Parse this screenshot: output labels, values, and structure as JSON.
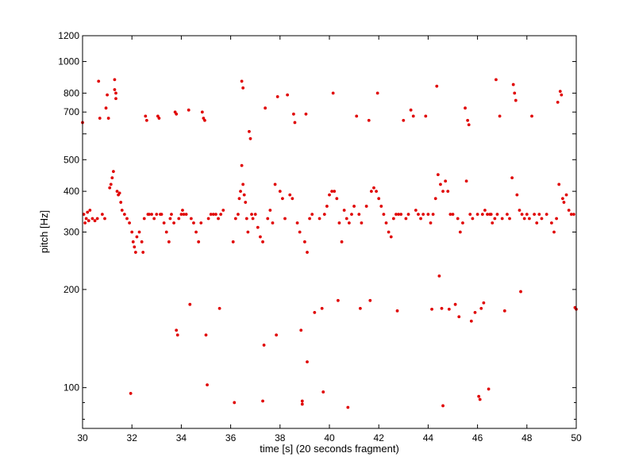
{
  "chart_data": {
    "type": "scatter",
    "xlabel": "time [s] (20 seconds fragment)",
    "ylabel": "pitch [Hz]",
    "xlim": [
      30,
      50
    ],
    "ylim": [
      75,
      1200
    ],
    "yscale": "log",
    "grid": false,
    "xticks": [
      30,
      32,
      34,
      36,
      38,
      40,
      42,
      44,
      46,
      48,
      50
    ],
    "yticks": [
      100,
      200,
      300,
      400,
      500,
      600,
      700,
      800,
      1000,
      1200
    ],
    "ytick_labels": [
      "100",
      "200",
      "300",
      "400",
      "500",
      "",
      "700",
      "800",
      "1000",
      "1200"
    ],
    "marker_color": "#e00000",
    "series": [
      {
        "points": [
          [
            30.0,
            650
          ],
          [
            30.05,
            340
          ],
          [
            30.1,
            320
          ],
          [
            30.15,
            330
          ],
          [
            30.2,
            345
          ],
          [
            30.25,
            325
          ],
          [
            30.3,
            350
          ],
          [
            30.4,
            330
          ],
          [
            30.5,
            325
          ],
          [
            30.6,
            330
          ],
          [
            30.65,
            870
          ],
          [
            30.7,
            670
          ],
          [
            30.8,
            340
          ],
          [
            30.9,
            330
          ],
          [
            30.95,
            720
          ],
          [
            31.0,
            790
          ],
          [
            31.05,
            670
          ],
          [
            31.1,
            410
          ],
          [
            31.15,
            420
          ],
          [
            31.2,
            440
          ],
          [
            31.25,
            460
          ],
          [
            31.3,
            880
          ],
          [
            31.3,
            820
          ],
          [
            31.35,
            800
          ],
          [
            31.35,
            770
          ],
          [
            31.4,
            400
          ],
          [
            31.45,
            390
          ],
          [
            31.5,
            395
          ],
          [
            31.55,
            370
          ],
          [
            31.6,
            350
          ],
          [
            31.7,
            340
          ],
          [
            31.8,
            330
          ],
          [
            31.9,
            320
          ],
          [
            31.95,
            96
          ],
          [
            32.0,
            300
          ],
          [
            32.05,
            280
          ],
          [
            32.1,
            270
          ],
          [
            32.15,
            260
          ],
          [
            32.2,
            290
          ],
          [
            32.3,
            300
          ],
          [
            32.4,
            280
          ],
          [
            32.45,
            260
          ],
          [
            32.5,
            330
          ],
          [
            32.55,
            680
          ],
          [
            32.6,
            660
          ],
          [
            32.65,
            340
          ],
          [
            32.7,
            340
          ],
          [
            32.8,
            340
          ],
          [
            32.9,
            330
          ],
          [
            33.0,
            340
          ],
          [
            33.05,
            680
          ],
          [
            33.1,
            670
          ],
          [
            33.15,
            340
          ],
          [
            33.2,
            340
          ],
          [
            33.3,
            320
          ],
          [
            33.4,
            300
          ],
          [
            33.5,
            280
          ],
          [
            33.55,
            330
          ],
          [
            33.6,
            340
          ],
          [
            33.7,
            320
          ],
          [
            33.75,
            700
          ],
          [
            33.8,
            690
          ],
          [
            33.8,
            150
          ],
          [
            33.85,
            145
          ],
          [
            33.9,
            330
          ],
          [
            34.0,
            340
          ],
          [
            34.05,
            350
          ],
          [
            34.1,
            340
          ],
          [
            34.2,
            340
          ],
          [
            34.3,
            710
          ],
          [
            34.35,
            180
          ],
          [
            34.4,
            330
          ],
          [
            34.5,
            320
          ],
          [
            34.6,
            300
          ],
          [
            34.7,
            280
          ],
          [
            34.8,
            320
          ],
          [
            34.85,
            700
          ],
          [
            34.9,
            670
          ],
          [
            34.95,
            660
          ],
          [
            35.0,
            145
          ],
          [
            35.05,
            102
          ],
          [
            35.1,
            330
          ],
          [
            35.2,
            340
          ],
          [
            35.3,
            340
          ],
          [
            35.4,
            340
          ],
          [
            35.5,
            330
          ],
          [
            35.55,
            175
          ],
          [
            35.6,
            340
          ],
          [
            35.7,
            350
          ],
          [
            36.1,
            280
          ],
          [
            36.15,
            90
          ],
          [
            36.2,
            330
          ],
          [
            36.3,
            340
          ],
          [
            36.35,
            380
          ],
          [
            36.4,
            400
          ],
          [
            36.45,
            480
          ],
          [
            36.45,
            870
          ],
          [
            36.5,
            830
          ],
          [
            36.5,
            420
          ],
          [
            36.55,
            390
          ],
          [
            36.6,
            370
          ],
          [
            36.65,
            330
          ],
          [
            36.7,
            300
          ],
          [
            36.75,
            610
          ],
          [
            36.8,
            580
          ],
          [
            36.85,
            340
          ],
          [
            36.9,
            330
          ],
          [
            37.0,
            340
          ],
          [
            37.1,
            310
          ],
          [
            37.2,
            290
          ],
          [
            37.3,
            280
          ],
          [
            37.35,
            135
          ],
          [
            37.3,
            91
          ],
          [
            37.4,
            720
          ],
          [
            37.5,
            330
          ],
          [
            37.6,
            350
          ],
          [
            37.7,
            320
          ],
          [
            37.8,
            420
          ],
          [
            37.85,
            145
          ],
          [
            37.9,
            780
          ],
          [
            38.0,
            400
          ],
          [
            38.1,
            380
          ],
          [
            38.2,
            330
          ],
          [
            38.3,
            790
          ],
          [
            38.4,
            390
          ],
          [
            38.5,
            380
          ],
          [
            38.55,
            690
          ],
          [
            38.6,
            650
          ],
          [
            38.7,
            320
          ],
          [
            38.8,
            300
          ],
          [
            38.85,
            150
          ],
          [
            38.9,
            91
          ],
          [
            38.9,
            89
          ],
          [
            39.0,
            280
          ],
          [
            39.05,
            690
          ],
          [
            39.1,
            260
          ],
          [
            39.1,
            120
          ],
          [
            39.2,
            330
          ],
          [
            39.3,
            340
          ],
          [
            39.4,
            170
          ],
          [
            39.6,
            330
          ],
          [
            39.7,
            175
          ],
          [
            39.75,
            97
          ],
          [
            39.8,
            340
          ],
          [
            39.9,
            360
          ],
          [
            40.0,
            390
          ],
          [
            40.1,
            400
          ],
          [
            40.15,
            800
          ],
          [
            40.2,
            400
          ],
          [
            40.3,
            380
          ],
          [
            40.35,
            185
          ],
          [
            40.4,
            320
          ],
          [
            40.5,
            280
          ],
          [
            40.6,
            350
          ],
          [
            40.7,
            330
          ],
          [
            40.75,
            87
          ],
          [
            40.8,
            320
          ],
          [
            40.9,
            340
          ],
          [
            41.0,
            360
          ],
          [
            41.1,
            680
          ],
          [
            41.2,
            340
          ],
          [
            41.25,
            175
          ],
          [
            41.3,
            320
          ],
          [
            41.5,
            360
          ],
          [
            41.6,
            660
          ],
          [
            41.65,
            185
          ],
          [
            41.7,
            400
          ],
          [
            41.8,
            410
          ],
          [
            41.9,
            400
          ],
          [
            41.95,
            800
          ],
          [
            42.0,
            380
          ],
          [
            42.1,
            360
          ],
          [
            42.2,
            340
          ],
          [
            42.3,
            320
          ],
          [
            42.4,
            300
          ],
          [
            42.5,
            290
          ],
          [
            42.6,
            330
          ],
          [
            42.7,
            340
          ],
          [
            42.75,
            172
          ],
          [
            42.8,
            340
          ],
          [
            42.9,
            340
          ],
          [
            43.0,
            660
          ],
          [
            43.1,
            330
          ],
          [
            43.2,
            340
          ],
          [
            43.3,
            710
          ],
          [
            43.4,
            680
          ],
          [
            43.5,
            350
          ],
          [
            43.6,
            340
          ],
          [
            43.7,
            330
          ],
          [
            43.8,
            340
          ],
          [
            43.9,
            680
          ],
          [
            44.0,
            340
          ],
          [
            44.1,
            320
          ],
          [
            44.15,
            174
          ],
          [
            44.2,
            340
          ],
          [
            44.3,
            380
          ],
          [
            44.35,
            840
          ],
          [
            44.4,
            450
          ],
          [
            44.45,
            220
          ],
          [
            44.5,
            420
          ],
          [
            44.55,
            175
          ],
          [
            44.6,
            88
          ],
          [
            44.6,
            400
          ],
          [
            44.7,
            430
          ],
          [
            44.8,
            400
          ],
          [
            44.85,
            174
          ],
          [
            44.9,
            340
          ],
          [
            45.0,
            340
          ],
          [
            45.1,
            180
          ],
          [
            45.2,
            330
          ],
          [
            45.25,
            165
          ],
          [
            45.3,
            300
          ],
          [
            45.4,
            320
          ],
          [
            45.5,
            720
          ],
          [
            45.55,
            430
          ],
          [
            45.6,
            660
          ],
          [
            45.65,
            640
          ],
          [
            45.7,
            340
          ],
          [
            45.75,
            160
          ],
          [
            45.8,
            330
          ],
          [
            45.9,
            170
          ],
          [
            46.0,
            340
          ],
          [
            46.05,
            94
          ],
          [
            46.1,
            92
          ],
          [
            46.15,
            175
          ],
          [
            46.2,
            340
          ],
          [
            46.25,
            182
          ],
          [
            46.3,
            350
          ],
          [
            46.4,
            340
          ],
          [
            46.45,
            99
          ],
          [
            46.5,
            340
          ],
          [
            46.55,
            340
          ],
          [
            46.6,
            320
          ],
          [
            46.7,
            330
          ],
          [
            46.75,
            880
          ],
          [
            46.8,
            340
          ],
          [
            46.9,
            680
          ],
          [
            47.0,
            330
          ],
          [
            47.1,
            172
          ],
          [
            47.2,
            340
          ],
          [
            47.3,
            330
          ],
          [
            47.4,
            440
          ],
          [
            47.45,
            850
          ],
          [
            47.5,
            800
          ],
          [
            47.55,
            760
          ],
          [
            47.6,
            390
          ],
          [
            47.7,
            350
          ],
          [
            47.75,
            197
          ],
          [
            47.8,
            340
          ],
          [
            47.9,
            330
          ],
          [
            48.0,
            340
          ],
          [
            48.1,
            330
          ],
          [
            48.2,
            680
          ],
          [
            48.3,
            340
          ],
          [
            48.4,
            320
          ],
          [
            48.5,
            340
          ],
          [
            48.6,
            330
          ],
          [
            48.8,
            340
          ],
          [
            49.0,
            320
          ],
          [
            49.1,
            300
          ],
          [
            49.2,
            330
          ],
          [
            49.25,
            750
          ],
          [
            49.3,
            420
          ],
          [
            49.35,
            810
          ],
          [
            49.4,
            790
          ],
          [
            49.45,
            380
          ],
          [
            49.5,
            370
          ],
          [
            49.6,
            390
          ],
          [
            49.7,
            350
          ],
          [
            49.8,
            340
          ],
          [
            49.9,
            340
          ],
          [
            49.95,
            176
          ],
          [
            50.0,
            174
          ]
        ]
      }
    ]
  }
}
